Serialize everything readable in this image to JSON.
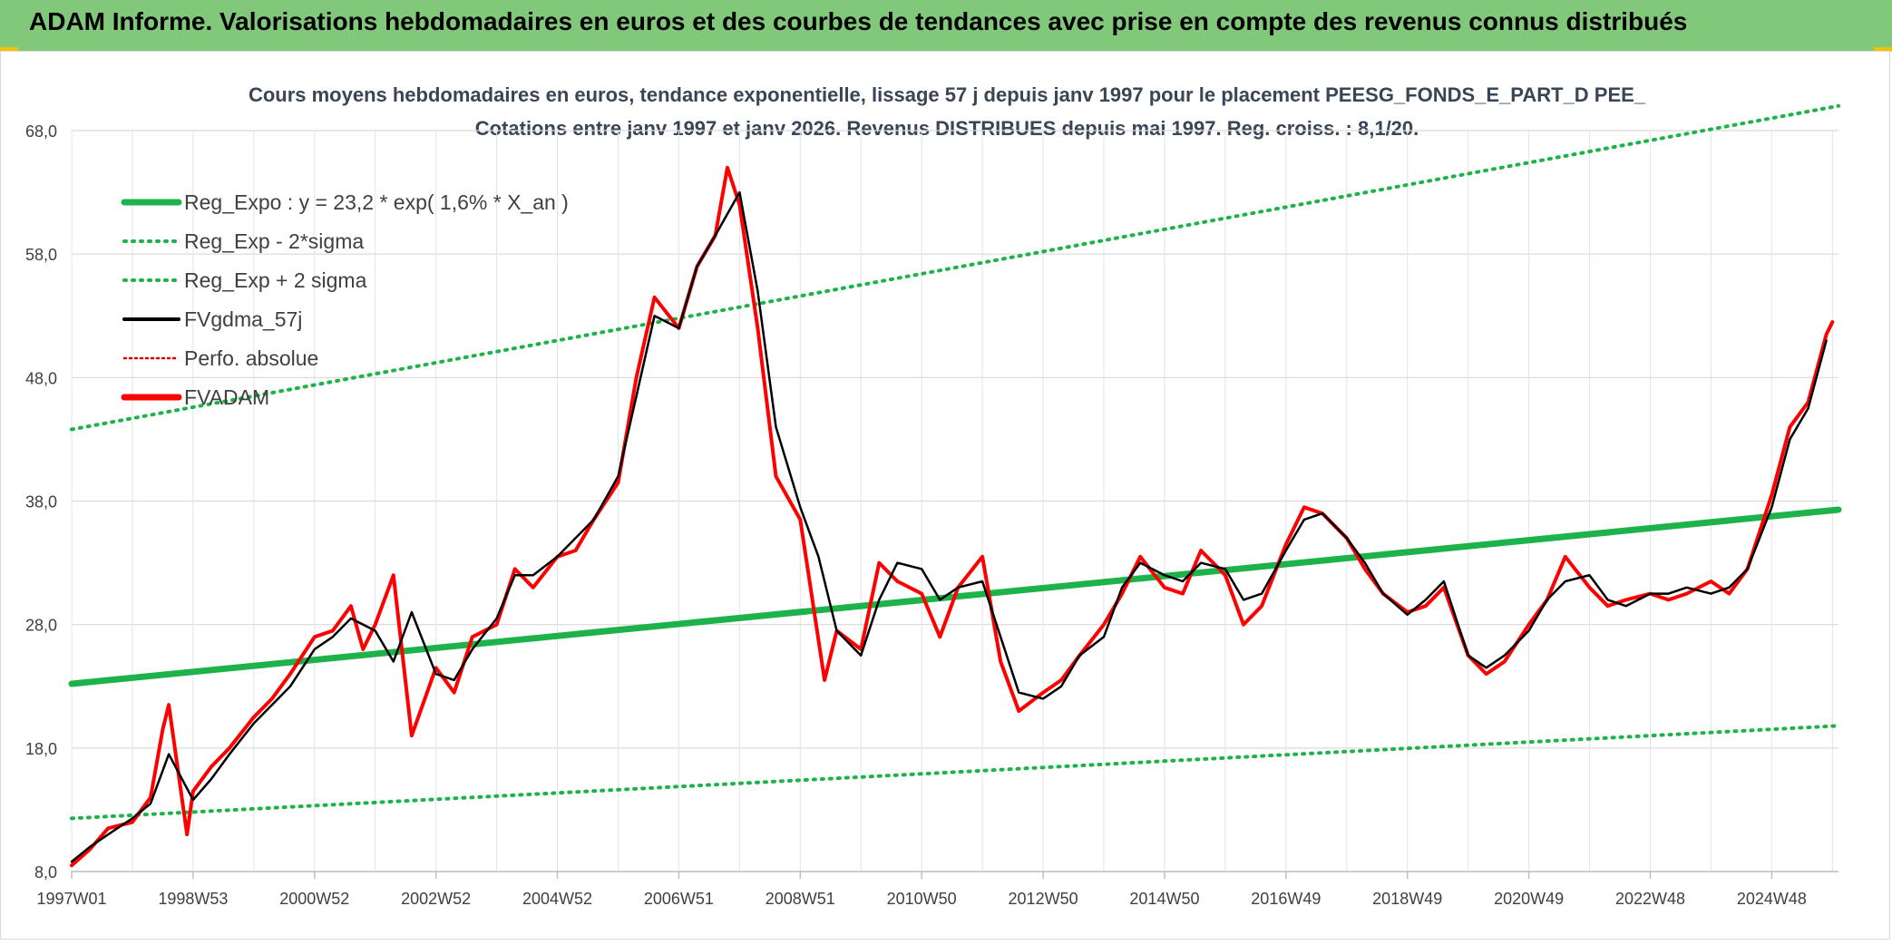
{
  "banner": {
    "title": "ADAM Informe. Valorisations hebdomadaires en euros et des courbes de tendances avec prise en compte des revenus connus distribués"
  },
  "colors": {
    "banner_bg": "#82c87a",
    "corner_accent": "#f2c200",
    "reg_expo": "#1db34a",
    "sigma_bands": "#1db34a",
    "fvgdma": "#000000",
    "perfo": "#d00000",
    "fvadam": "#ff0000",
    "grid": "#d9d9d9",
    "title_text": "#3a4556"
  },
  "chart_data": {
    "type": "line",
    "title_line1": "Cours moyens hebdomadaires en euros, tendance exponentielle, lissage 57 j depuis janv 1997 pour le placement PEESG_FONDS_E_PART_D PEE_",
    "title_line2": "Cotations entre janv 1997 et janv 2026. Revenus DISTRIBUES depuis mai 1997. Reg. croiss. : 8,1/20.",
    "xlabel": "",
    "ylabel": "",
    "x_range": [
      1997.0,
      2026.1
    ],
    "ylim": [
      8,
      68
    ],
    "y_ticks": [
      "8,0",
      "18,0",
      "28,0",
      "38,0",
      "48,0",
      "58,0",
      "68,0"
    ],
    "x_ticks": [
      {
        "label": "1997W01",
        "x": 1997.0
      },
      {
        "label": "1998W53",
        "x": 1999.0
      },
      {
        "label": "2000W52",
        "x": 2001.0
      },
      {
        "label": "2002W52",
        "x": 2003.0
      },
      {
        "label": "2004W52",
        "x": 2005.0
      },
      {
        "label": "2006W51",
        "x": 2007.0
      },
      {
        "label": "2008W51",
        "x": 2009.0
      },
      {
        "label": "2010W50",
        "x": 2011.0
      },
      {
        "label": "2012W50",
        "x": 2013.0
      },
      {
        "label": "2014W50",
        "x": 2015.0
      },
      {
        "label": "2016W49",
        "x": 2017.0
      },
      {
        "label": "2018W49",
        "x": 2019.0
      },
      {
        "label": "2020W49",
        "x": 2021.0
      },
      {
        "label": "2022W48",
        "x": 2023.0
      },
      {
        "label": "2024W48",
        "x": 2025.0
      }
    ],
    "grid": true,
    "legend_position": "top-left",
    "legend": [
      {
        "label": "Reg_Expo : y = 23,2 * exp( 1,6% *  X_an )",
        "style": "solid-thick",
        "color": "#1db34a"
      },
      {
        "label": "Reg_Exp - 2*sigma",
        "style": "dotted",
        "color": "#1db34a"
      },
      {
        "label": "Reg_Exp + 2 sigma",
        "style": "dotted",
        "color": "#1db34a"
      },
      {
        "label": "FVgdma_57j",
        "style": "solid",
        "color": "#000000"
      },
      {
        "label": "Perfo. absolue",
        "style": "dotted-thin",
        "color": "#d00000"
      },
      {
        "label": "FVADAM",
        "style": "solid-thick",
        "color": "#ff0000"
      }
    ],
    "series": [
      {
        "name": "Reg_Expo : y = 23,2 * exp( 1,6% *  X_an )",
        "x": [
          1997.0,
          2026.1
        ],
        "y": [
          23.2,
          37.3
        ]
      },
      {
        "name": "Reg_Exp - 2*sigma",
        "x": [
          1997.0,
          2026.1
        ],
        "y": [
          12.3,
          19.8
        ]
      },
      {
        "name": "Reg_Exp + 2 sigma",
        "x": [
          1997.0,
          2026.1
        ],
        "y": [
          43.8,
          70.0
        ]
      },
      {
        "name": "FVgdma_57j",
        "x": [
          1997.0,
          1997.3,
          1997.6,
          1998.0,
          1998.3,
          1998.6,
          1999.0,
          1999.3,
          1999.6,
          2000.0,
          2000.3,
          2000.6,
          2001.0,
          2001.3,
          2001.6,
          2002.0,
          2002.3,
          2002.6,
          2003.0,
          2003.3,
          2003.6,
          2004.0,
          2004.3,
          2004.6,
          2005.0,
          2005.3,
          2005.6,
          2006.0,
          2006.3,
          2006.6,
          2007.0,
          2007.3,
          2007.6,
          2008.0,
          2008.3,
          2008.6,
          2009.0,
          2009.3,
          2009.6,
          2010.0,
          2010.3,
          2010.6,
          2011.0,
          2011.3,
          2011.6,
          2012.0,
          2012.3,
          2012.6,
          2013.0,
          2013.3,
          2013.6,
          2014.0,
          2014.3,
          2014.6,
          2015.0,
          2015.3,
          2015.6,
          2016.0,
          2016.3,
          2016.6,
          2017.0,
          2017.3,
          2017.6,
          2018.0,
          2018.3,
          2018.6,
          2019.0,
          2019.3,
          2019.6,
          2020.0,
          2020.3,
          2020.6,
          2021.0,
          2021.3,
          2021.6,
          2022.0,
          2022.3,
          2022.6,
          2023.0,
          2023.3,
          2023.6,
          2024.0,
          2024.3,
          2024.6,
          2025.0,
          2025.3,
          2025.6,
          2025.9
        ],
        "y": [
          8.8,
          10.0,
          11.0,
          12.3,
          13.5,
          17.5,
          13.8,
          15.5,
          17.5,
          20.0,
          21.5,
          23.0,
          26.0,
          27.0,
          28.5,
          27.5,
          25.0,
          29.0,
          24.0,
          23.5,
          26.0,
          28.5,
          32.0,
          32.0,
          33.5,
          35.0,
          36.5,
          40.0,
          46.5,
          53.0,
          52.0,
          57.0,
          59.5,
          63.0,
          55.0,
          44.0,
          37.5,
          33.5,
          27.5,
          25.5,
          30.0,
          33.0,
          32.5,
          30.0,
          31.0,
          31.5,
          27.0,
          22.5,
          22.0,
          23.0,
          25.5,
          27.0,
          31.0,
          33.0,
          32.0,
          31.5,
          33.0,
          32.5,
          30.0,
          30.5,
          34.0,
          36.5,
          37.0,
          35.0,
          33.0,
          30.5,
          28.8,
          30.0,
          31.5,
          25.5,
          24.5,
          25.5,
          27.5,
          30.0,
          31.5,
          32.0,
          30.0,
          29.5,
          30.5,
          30.5,
          31.0,
          30.5,
          31.0,
          32.5,
          37.5,
          43.0,
          45.5,
          51.0
        ]
      },
      {
        "name": "FVADAM",
        "x": [
          1997.0,
          1997.3,
          1997.6,
          1998.0,
          1998.3,
          1998.5,
          1998.6,
          1998.9,
          1999.0,
          1999.3,
          1999.6,
          2000.0,
          2000.3,
          2000.6,
          2001.0,
          2001.3,
          2001.6,
          2001.8,
          2002.0,
          2002.3,
          2002.6,
          2003.0,
          2003.3,
          2003.6,
          2004.0,
          2004.3,
          2004.6,
          2005.0,
          2005.3,
          2005.6,
          2006.0,
          2006.3,
          2006.6,
          2007.0,
          2007.3,
          2007.6,
          2007.8,
          2008.0,
          2008.3,
          2008.6,
          2009.0,
          2009.2,
          2009.4,
          2009.6,
          2010.0,
          2010.3,
          2010.6,
          2011.0,
          2011.3,
          2011.6,
          2012.0,
          2012.3,
          2012.6,
          2013.0,
          2013.3,
          2013.6,
          2014.0,
          2014.3,
          2014.6,
          2015.0,
          2015.3,
          2015.6,
          2016.0,
          2016.3,
          2016.6,
          2017.0,
          2017.3,
          2017.6,
          2018.0,
          2018.3,
          2018.6,
          2019.0,
          2019.3,
          2019.6,
          2020.0,
          2020.3,
          2020.6,
          2021.0,
          2021.3,
          2021.6,
          2022.0,
          2022.3,
          2022.6,
          2023.0,
          2023.3,
          2023.6,
          2024.0,
          2024.3,
          2024.6,
          2025.0,
          2025.3,
          2025.6,
          2025.9,
          2026.0
        ],
        "y": [
          8.5,
          9.8,
          11.5,
          12.0,
          14.0,
          19.5,
          21.5,
          11.0,
          14.5,
          16.5,
          18.0,
          20.5,
          22.0,
          24.0,
          27.0,
          27.5,
          29.5,
          26.0,
          28.0,
          32.0,
          19.0,
          24.5,
          22.5,
          27.0,
          28.0,
          32.5,
          31.0,
          33.5,
          34.0,
          36.5,
          39.5,
          48.0,
          54.5,
          52.0,
          57.0,
          59.5,
          65.0,
          62.0,
          52.0,
          40.0,
          36.5,
          30.0,
          23.5,
          27.5,
          26.0,
          33.0,
          31.5,
          30.5,
          27.0,
          31.0,
          33.5,
          25.0,
          21.0,
          22.5,
          23.5,
          25.5,
          28.0,
          30.5,
          33.5,
          31.0,
          30.5,
          34.0,
          32.0,
          28.0,
          29.5,
          34.5,
          37.5,
          37.0,
          35.0,
          32.5,
          30.5,
          29.0,
          29.5,
          31.0,
          25.5,
          24.0,
          25.0,
          28.0,
          30.0,
          33.5,
          31.0,
          29.5,
          30.0,
          30.5,
          30.0,
          30.5,
          31.5,
          30.5,
          32.5,
          38.5,
          44.0,
          46.0,
          51.5,
          52.5
        ]
      }
    ]
  }
}
